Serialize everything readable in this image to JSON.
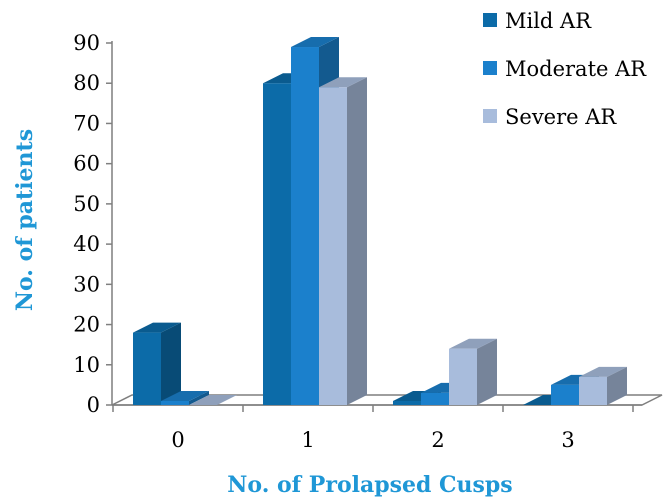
{
  "chart_data": {
    "type": "bar",
    "title": "",
    "xlabel": "No. of Prolapsed Cusps",
    "ylabel": "No. of  patients",
    "categories": [
      "0",
      "1",
      "2",
      "3"
    ],
    "series": [
      {
        "name": "Mild AR",
        "values": [
          18,
          80,
          1,
          0
        ],
        "color": "#0c6ba8"
      },
      {
        "name": "Moderate AR",
        "values": [
          1,
          89,
          3,
          5
        ],
        "color": "#1b80cc"
      },
      {
        "name": "Severe AR",
        "values": [
          0,
          79,
          14,
          7
        ],
        "color": "#a8bcdc"
      }
    ],
    "ylim": [
      0,
      90
    ],
    "yticks": [
      0,
      10,
      20,
      30,
      40,
      50,
      60,
      70,
      80,
      90
    ],
    "grid": false,
    "legend": "top-right",
    "style": "3d-clustered-column"
  }
}
